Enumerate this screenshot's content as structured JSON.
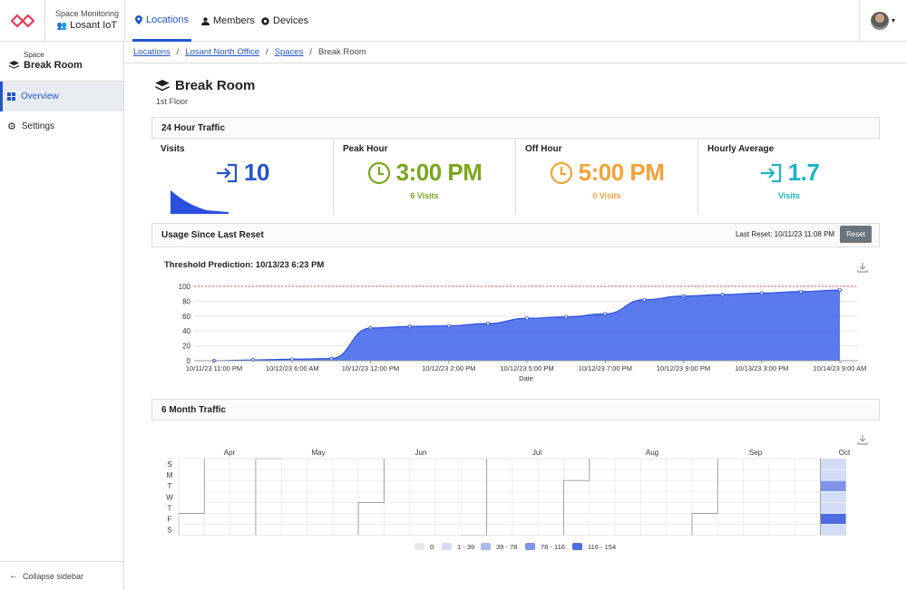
{
  "app": {
    "label": "Space Monitoring",
    "name": "Losant IoT"
  },
  "nav": {
    "tabs": [
      {
        "label": "Locations"
      },
      {
        "label": "Members"
      },
      {
        "label": "Devices"
      }
    ]
  },
  "sidebar": {
    "small_label": "Space",
    "title": "Break Room",
    "items": [
      {
        "label": "Overview"
      },
      {
        "label": "Settings"
      }
    ],
    "collapse_label": "Collapse sidebar"
  },
  "breadcrumb": [
    "Locations",
    "Losant North Office",
    "Spaces",
    "Break Room"
  ],
  "page": {
    "title": "Break Room",
    "subtitle": "1st Floor"
  },
  "traffic": {
    "heading": "24 Hour Traffic",
    "visits": {
      "label": "Visits",
      "value": "10"
    },
    "peak": {
      "label": "Peak Hour",
      "value": "3:00 PM",
      "sub": "6 Visits"
    },
    "off": {
      "label": "Off Hour",
      "value": "5:00 PM",
      "sub": "0 Visits"
    },
    "avg": {
      "label": "Hourly Average",
      "value": "1.7",
      "sub": "Visits"
    }
  },
  "usage": {
    "heading": "Usage Since Last Reset",
    "last_reset": "Last Reset: 10/11/23 11:08 PM",
    "reset_label": "Reset",
    "chart_title": "Threshold Prediction: 10/13/23 6:23 PM"
  },
  "six_month": {
    "heading": "6 Month Traffic"
  },
  "colors": {
    "accent": "#2255cc",
    "peak": "#7aa61d",
    "off": "#f2a23a",
    "avg": "#1bb5c7",
    "area": "#4d6fec"
  },
  "chart_data": [
    {
      "type": "area",
      "title": "Threshold Prediction: 10/13/23 6:23 PM",
      "xlabel": "Date",
      "ylabel": "",
      "ylim": [
        0,
        100
      ],
      "yticks": [
        0,
        20,
        40,
        60,
        80,
        100
      ],
      "threshold": 100,
      "x_ticks": [
        "10/11/23 11:00 PM",
        "10/12/23 6:00 AM",
        "10/12/23 12:00 PM",
        "10/12/23 2:00 PM",
        "10/12/23 5:00 PM",
        "10/12/23 7:00 PM",
        "10/12/23 9:00 PM",
        "10/13/23 3:00 PM",
        "10/14/23 9:00 AM"
      ],
      "values": [
        0,
        1,
        2,
        3,
        44,
        46,
        47,
        50,
        57,
        59,
        63,
        82,
        87,
        89,
        91,
        93,
        95
      ]
    },
    {
      "type": "heatmap",
      "title": "6 Month Traffic",
      "months": [
        "Apr",
        "May",
        "Jun",
        "Jul",
        "Aug",
        "Sep",
        "Oct"
      ],
      "days": [
        "S",
        "M",
        "T",
        "W",
        "T",
        "F",
        "S"
      ],
      "legend": [
        {
          "label": "0",
          "color": "#e8e8e8"
        },
        {
          "label": "1 - 39",
          "color": "#d3dcf7"
        },
        {
          "label": "39 - 78",
          "color": "#a9b9f0"
        },
        {
          "label": "78 - 116",
          "color": "#7d94e8"
        },
        {
          "label": "116 - 154",
          "color": "#4f6de0"
        }
      ],
      "last_week": [
        1,
        1,
        3,
        1,
        1,
        4,
        1
      ]
    }
  ]
}
